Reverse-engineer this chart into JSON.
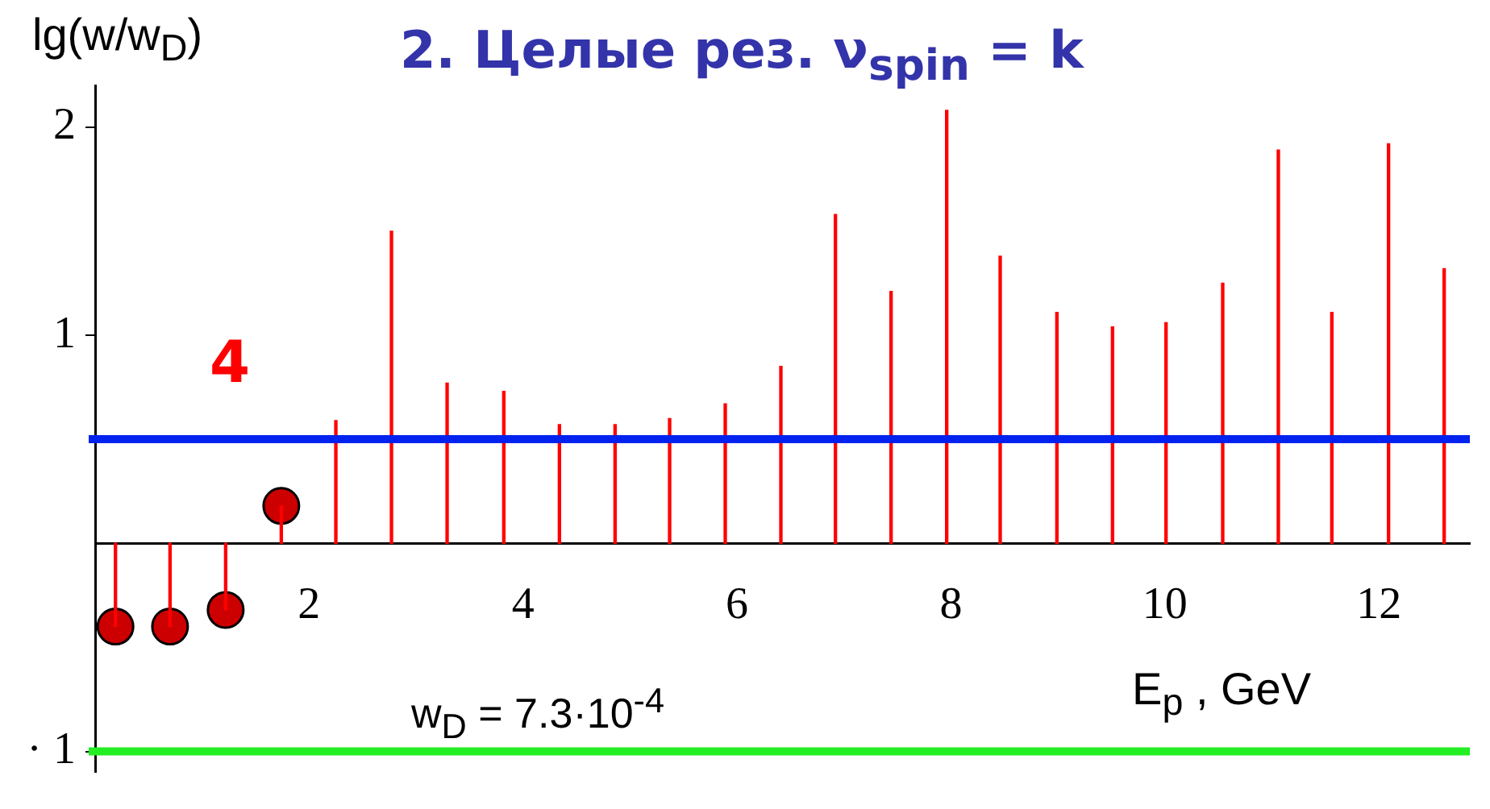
{
  "chart_data": {
    "type": "bar",
    "title": "2. Целые рез. ν$_{spin}$ = k",
    "xlabel": "E$_{p}$ , GeV",
    "ylabel": "lg(w/w$_{D}$)",
    "annotations": [
      "4",
      "w$_{D}$ = 7.3·10$^{-4}$"
    ],
    "x": [
      0.19,
      0.7,
      1.22,
      1.74,
      2.25,
      2.77,
      3.29,
      3.82,
      4.34,
      4.86,
      5.37,
      5.89,
      6.41,
      6.92,
      7.44,
      7.96,
      8.46,
      8.99,
      9.51,
      10.01,
      10.54,
      11.06,
      11.56,
      12.09,
      12.61
    ],
    "series": [
      {
        "color": "#ff0000",
        "values": [
          -0.4,
          -0.4,
          -0.32,
          0.18,
          0.59,
          1.5,
          0.77,
          0.73,
          0.57,
          0.57,
          0.6,
          0.67,
          0.85,
          1.58,
          1.21,
          2.08,
          1.38,
          1.11,
          1.04,
          1.06,
          1.25,
          1.89,
          1.11,
          1.92,
          1.32
        ]
      },
      {
        "type": "scatter",
        "color": "#cc0000",
        "marker": "circle",
        "x": [
          0.19,
          0.7,
          1.22,
          1.74
        ],
        "values": [
          -0.4,
          -0.4,
          -0.32,
          0.18
        ]
      }
    ],
    "xlim": [
      0,
      12.85
    ],
    "xticks": [
      2,
      4,
      6,
      8,
      10,
      12
    ],
    "ylim": [
      -1.1,
      2.2
    ],
    "yticks": [
      2,
      1,
      {
        "value": -1,
        "label": "· 1"
      }
    ],
    "ref_lines": [
      {
        "axis": "y",
        "value": 0.5,
        "color": "#0022ee"
      },
      {
        "axis": "y",
        "value": -1,
        "color": "#22ee22"
      }
    ],
    "grid": false,
    "legend": false
  }
}
